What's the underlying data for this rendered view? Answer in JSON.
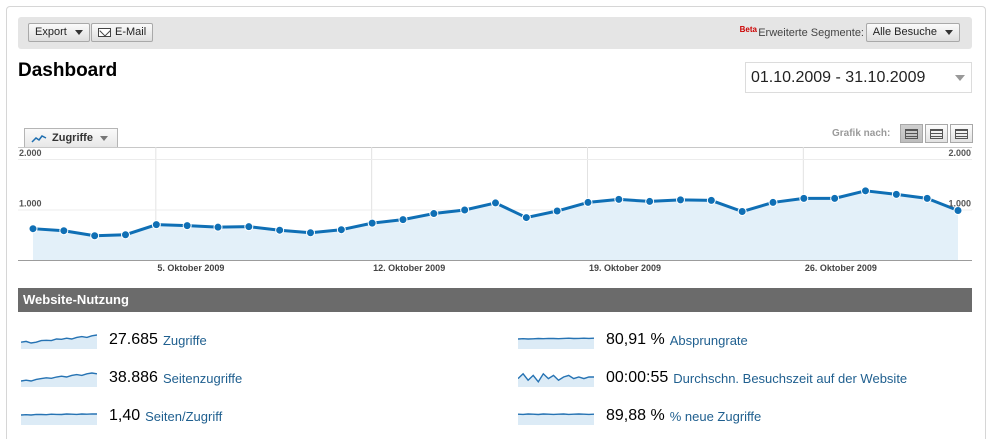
{
  "toolbar": {
    "export_label": "Export",
    "email_label": "E-Mail",
    "beta_label": "Beta",
    "segments_label": "Erweiterte Segmente:",
    "segment_value": "Alle Besuche"
  },
  "page": {
    "title": "Dashboard",
    "date_range": "01.10.2009 - 31.10.2009"
  },
  "graph": {
    "metric": "Zugriffe",
    "graph_by_label": "Grafik nach:",
    "graph_by_options": [
      "day-view-icon",
      "week-view-icon",
      "month-view-icon"
    ]
  },
  "colors": {
    "line": "#0f6fb5",
    "fill": "#e3f0f9",
    "section_bar": "#6b6b6b",
    "link": "#1f5f8f"
  },
  "chart_data": {
    "type": "area",
    "x": [
      "01.10.2009",
      "02.10.2009",
      "03.10.2009",
      "04.10.2009",
      "05.10.2009",
      "06.10.2009",
      "07.10.2009",
      "08.10.2009",
      "09.10.2009",
      "10.10.2009",
      "11.10.2009",
      "12.10.2009",
      "13.10.2009",
      "14.10.2009",
      "15.10.2009",
      "16.10.2009",
      "17.10.2009",
      "18.10.2009",
      "19.10.2009",
      "20.10.2009",
      "21.10.2009",
      "22.10.2009",
      "23.10.2009",
      "24.10.2009",
      "25.10.2009",
      "26.10.2009",
      "27.10.2009",
      "28.10.2009",
      "29.10.2009",
      "30.10.2009",
      "31.10.2009"
    ],
    "series": [
      {
        "values": [
          620,
          580,
          480,
          500,
          700,
          680,
          650,
          660,
          590,
          540,
          600,
          730,
          800,
          920,
          990,
          1130,
          840,
          970,
          1140,
          1200,
          1160,
          1190,
          1180,
          960,
          1140,
          1220,
          1220,
          1370,
          1300,
          1220,
          980
        ]
      }
    ],
    "y_tick_labels": [
      "1.000",
      "2.000"
    ],
    "y_ticks": [
      1000,
      2000
    ],
    "ylim": [
      0,
      2000
    ],
    "x_tick_labels": [
      "5. Oktober 2009",
      "12. Oktober 2009",
      "19. Oktober 2009",
      "26. Oktober 2009"
    ],
    "x_tick_index": [
      4,
      11,
      18,
      25
    ],
    "grid": true
  },
  "usage": {
    "title": "Website-Nutzung",
    "stats": [
      {
        "value": "27.685",
        "label": "Zugriffe"
      },
      {
        "value": "80,91 %",
        "label": "Absprungrate"
      },
      {
        "value": "38.886",
        "label": "Seitenzugriffe"
      },
      {
        "value": "00:00:55",
        "label": "Durchschn. Besuchszeit auf der Website"
      },
      {
        "value": "1,40",
        "label": "Seiten/Zugriff"
      },
      {
        "value": "89,88 %",
        "label": "% neue Zugriffe"
      }
    ],
    "sparklines": [
      [
        3,
        3.5,
        2.5,
        3,
        4,
        4.2,
        4,
        5,
        4.8,
        5.5,
        5,
        6,
        6.5,
        6,
        7,
        7.5
      ],
      [
        5,
        5.2,
        5,
        5.1,
        5.3,
        5.2,
        5.4,
        5.3,
        5.2,
        5.4,
        5.5,
        5.3,
        5.4,
        5.5,
        5.4,
        5.5
      ],
      [
        2.5,
        3,
        2.5,
        3.5,
        4,
        4.5,
        4.2,
        5,
        5.5,
        5,
        6,
        6.5,
        6,
        7,
        7.5,
        7
      ],
      [
        4,
        7,
        3,
        6,
        2,
        7,
        4,
        6,
        3,
        5,
        6,
        4,
        5,
        4,
        5,
        5
      ],
      [
        5,
        5.2,
        5,
        5.4,
        5.3,
        5.2,
        5.5,
        5.4,
        5.3,
        5.6,
        5.5,
        5.4,
        5.6,
        5.5,
        5.7,
        5.6
      ],
      [
        5.5,
        5.4,
        5.6,
        5.5,
        5.3,
        5.6,
        5.5,
        5.4,
        5.5,
        5.6,
        5.4,
        5.5,
        5.6,
        5.5,
        5.4,
        5.5
      ]
    ]
  }
}
